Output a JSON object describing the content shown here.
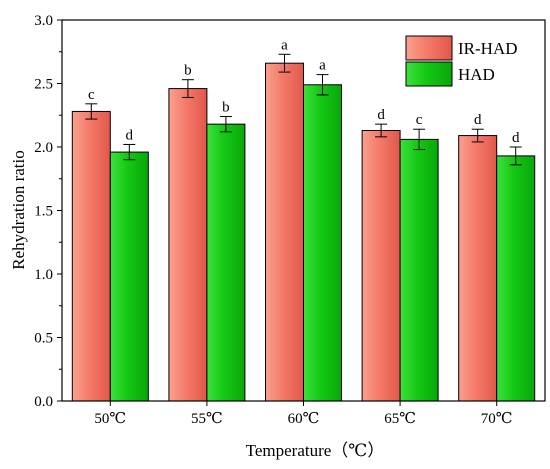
{
  "chart_data": {
    "type": "bar",
    "xlabel": "Temperature（℃）",
    "ylabel": "Rehydration ratio",
    "categories": [
      "50℃",
      "55℃",
      "60℃",
      "65℃",
      "70℃"
    ],
    "ylim": [
      0,
      3.0
    ],
    "yticks": [
      "0.0",
      "0.5",
      "1.0",
      "1.5",
      "2.0",
      "2.5",
      "3.0"
    ],
    "grid": false,
    "legend_position": "top-right",
    "series": [
      {
        "name": "IR-HAD",
        "color": "#f47a6a",
        "values": [
          2.28,
          2.46,
          2.66,
          2.13,
          2.09
        ],
        "errors": [
          0.06,
          0.07,
          0.07,
          0.05,
          0.05
        ],
        "labels": [
          "c",
          "b",
          "a",
          "d",
          "d"
        ]
      },
      {
        "name": "HAD",
        "color": "#14c814",
        "values": [
          1.96,
          2.18,
          2.49,
          2.06,
          1.93
        ],
        "errors": [
          0.06,
          0.06,
          0.08,
          0.08,
          0.07
        ],
        "labels": [
          "d",
          "b",
          "a",
          "c",
          "d"
        ]
      }
    ]
  }
}
